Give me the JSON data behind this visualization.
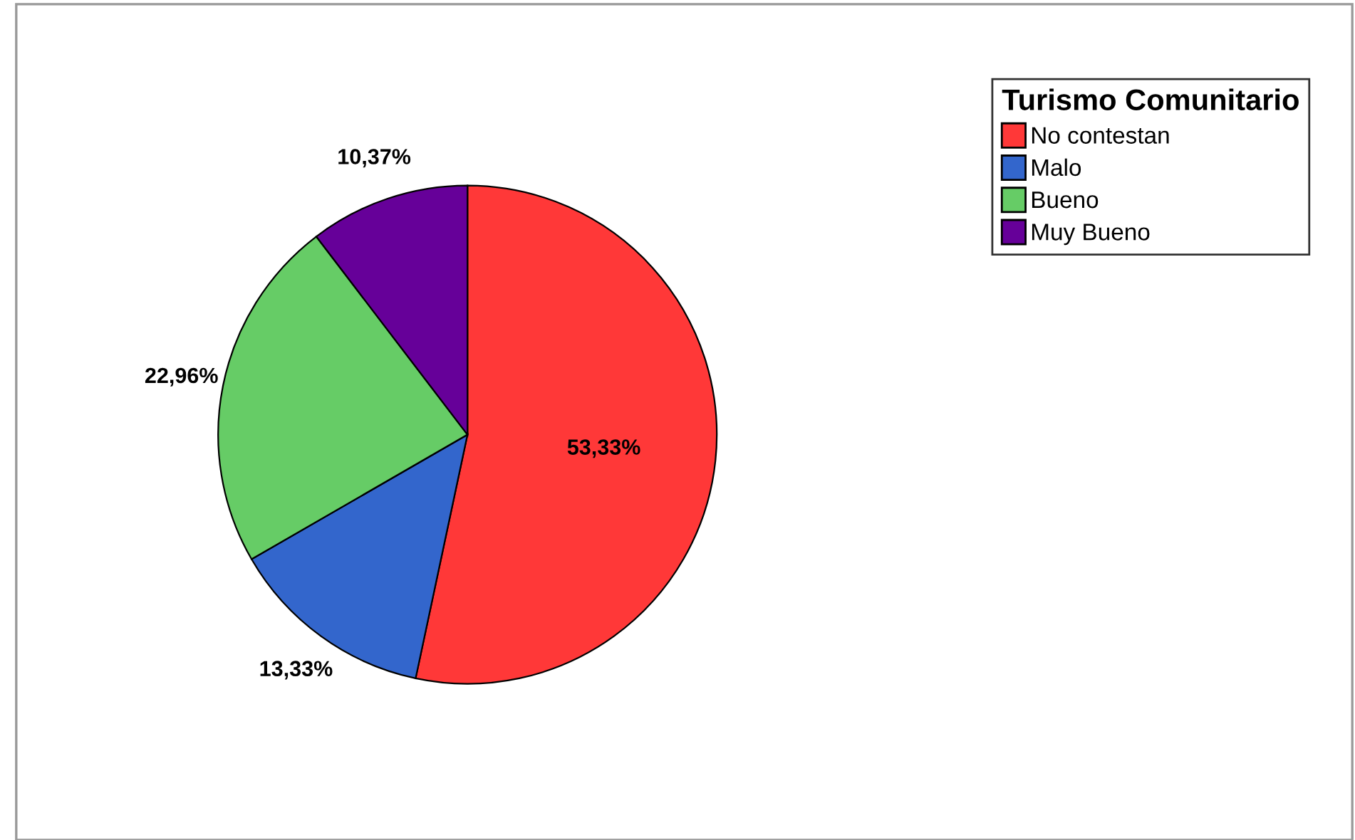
{
  "chart_data": {
    "type": "pie",
    "legend_title": "Turismo Comunitario",
    "legend": "top right",
    "categories": [
      "No contestan",
      "Malo",
      "Bueno",
      "Muy Bueno"
    ],
    "values": [
      53.33,
      13.33,
      22.96,
      10.37
    ],
    "colors": [
      "#ff3838",
      "#3366cc",
      "#66cc66",
      "#660099"
    ],
    "value_labels": [
      "53,33%",
      "13,33%",
      "22,96%",
      "10,37%"
    ]
  }
}
